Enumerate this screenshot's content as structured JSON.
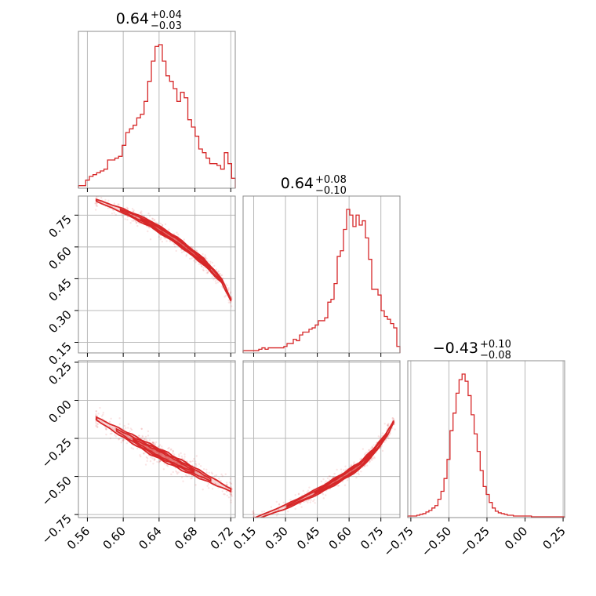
{
  "chart_data": {
    "type": "corner",
    "color": "#d62728",
    "grid": true,
    "parameters": [
      {
        "title": "0.64",
        "plus": "+0.04",
        "minus": "−0.03",
        "range": [
          0.55,
          0.725
        ],
        "ticks": [
          0.56,
          0.6,
          0.64,
          0.68,
          0.72
        ],
        "tick_labels": [
          "0.56",
          "0.60",
          "0.64",
          "0.68",
          "0.72"
        ]
      },
      {
        "title": "0.64",
        "plus": "+0.08",
        "minus": "−0.10",
        "range": [
          0.1,
          0.84
        ],
        "ticks": [
          0.15,
          0.3,
          0.45,
          0.6,
          0.75
        ],
        "tick_labels": [
          "0.15",
          "0.30",
          "0.45",
          "0.60",
          "0.75"
        ]
      },
      {
        "title": "−0.43",
        "plus": "+0.10",
        "minus": "−0.08",
        "range": [
          -0.77,
          0.26
        ],
        "ticks": [
          -0.75,
          -0.5,
          -0.25,
          0.0,
          0.25
        ],
        "tick_labels": [
          "−0.75",
          "−0.50",
          "−0.25",
          "0.00",
          "0.25"
        ]
      }
    ],
    "histograms": [
      {
        "param": 0,
        "bin_edges_range": [
          0.55,
          0.725
        ],
        "bins": 43,
        "counts": [
          1,
          1,
          4,
          6,
          7,
          8,
          9,
          10,
          15,
          15,
          16,
          17,
          23,
          30,
          32,
          34,
          38,
          40,
          47,
          58,
          69,
          77,
          78,
          69,
          61,
          58,
          54,
          47,
          52,
          49,
          37,
          33,
          28,
          21,
          19,
          16,
          13,
          13,
          12,
          10,
          19,
          13,
          5
        ]
      },
      {
        "param": 1,
        "bin_edges_range": [
          0.1,
          0.84
        ],
        "bins": 50,
        "counts": [
          1,
          1,
          1,
          1,
          1,
          2,
          3,
          2,
          3,
          3,
          3,
          3,
          3,
          4,
          6,
          6,
          9,
          8,
          12,
          14,
          14,
          16,
          17,
          19,
          22,
          22,
          24,
          35,
          37,
          48,
          67,
          71,
          86,
          100,
          96,
          88,
          96,
          89,
          92,
          80,
          65,
          44,
          44,
          40,
          29,
          25,
          23,
          20,
          17,
          4
        ]
      },
      {
        "param": 2,
        "bin_edges_range": [
          -0.77,
          0.26
        ],
        "bins": 52,
        "counts": [
          1,
          1,
          1,
          2,
          3,
          4,
          6,
          8,
          11,
          14,
          22,
          32,
          48,
          72,
          108,
          130,
          155,
          172,
          179,
          170,
          152,
          128,
          104,
          82,
          58,
          38,
          28,
          18,
          11,
          7,
          5,
          4,
          3,
          2,
          2,
          1,
          1,
          1,
          1,
          1,
          1,
          0,
          0,
          0,
          0,
          0,
          0,
          0,
          0,
          0,
          0,
          0
        ]
      }
    ],
    "joint": [
      {
        "x_param": 0,
        "y_param": 1,
        "ridge": [
          [
            0.57,
            0.82
          ],
          [
            0.6,
            0.77
          ],
          [
            0.63,
            0.71
          ],
          [
            0.66,
            0.63
          ],
          [
            0.69,
            0.53
          ],
          [
            0.71,
            0.44
          ],
          [
            0.72,
            0.35
          ]
        ],
        "spread": 0.04
      },
      {
        "x_param": 0,
        "y_param": 2,
        "ridge": [
          [
            0.57,
            -0.12
          ],
          [
            0.6,
            -0.22
          ],
          [
            0.63,
            -0.32
          ],
          [
            0.66,
            -0.41
          ],
          [
            0.69,
            -0.5
          ],
          [
            0.72,
            -0.59
          ]
        ],
        "spread": 0.06
      },
      {
        "x_param": 1,
        "y_param": 2,
        "ridge": [
          [
            0.15,
            -0.78
          ],
          [
            0.3,
            -0.7
          ],
          [
            0.45,
            -0.6
          ],
          [
            0.55,
            -0.52
          ],
          [
            0.65,
            -0.43
          ],
          [
            0.72,
            -0.33
          ],
          [
            0.78,
            -0.22
          ],
          [
            0.81,
            -0.14
          ]
        ],
        "spread": 0.04
      }
    ]
  }
}
